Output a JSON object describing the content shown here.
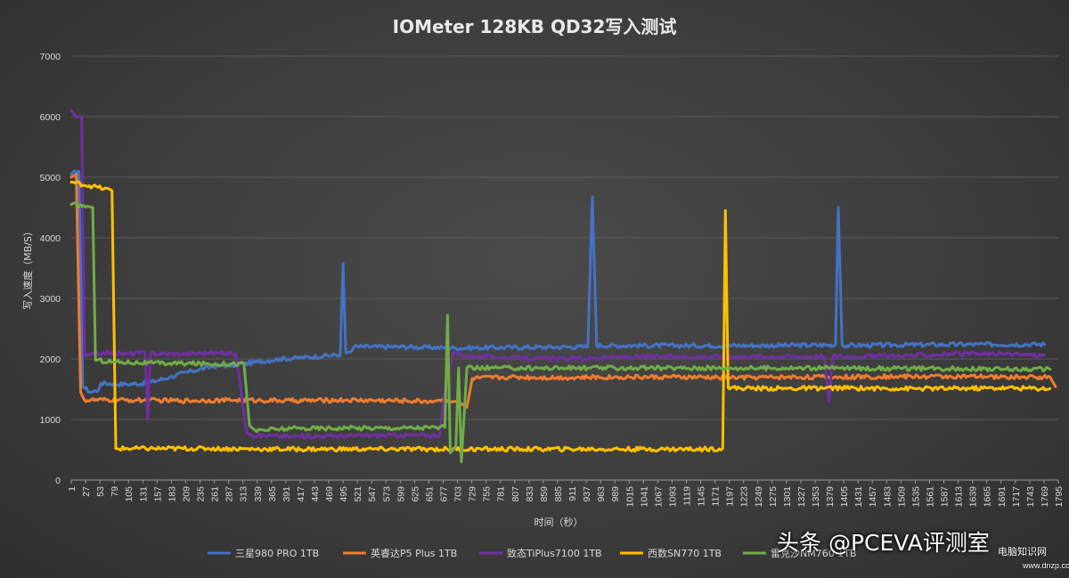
{
  "chart_data": {
    "type": "line",
    "title": "IOMeter 128KB QD32写入测试",
    "xlabel": "时间（秒）",
    "ylabel": "写入速度（MB/S）",
    "xlim": [
      1,
      1795
    ],
    "ylim": [
      0,
      7000
    ],
    "y_ticks": [
      0,
      1000,
      2000,
      3000,
      4000,
      5000,
      6000,
      7000
    ],
    "x_ticks": [
      1,
      27,
      53,
      79,
      105,
      131,
      157,
      183,
      209,
      235,
      261,
      287,
      313,
      339,
      365,
      391,
      417,
      443,
      469,
      495,
      521,
      547,
      573,
      599,
      625,
      651,
      677,
      703,
      729,
      755,
      781,
      807,
      833,
      859,
      885,
      911,
      937,
      963,
      989,
      1015,
      1041,
      1067,
      1093,
      1119,
      1145,
      1171,
      1197,
      1223,
      1249,
      1275,
      1301,
      1327,
      1353,
      1379,
      1405,
      1431,
      1457,
      1483,
      1509,
      1535,
      1561,
      1587,
      1613,
      1639,
      1665,
      1691,
      1717,
      1743,
      1769,
      1795
    ],
    "grid": true,
    "legend_position": "bottom",
    "series": [
      {
        "name": "三星980 PRO 1TB",
        "color": "#4472c4",
        "points": [
          [
            1,
            5050
          ],
          [
            15,
            5100
          ],
          [
            22,
            1550
          ],
          [
            35,
            1450
          ],
          [
            50,
            1480
          ],
          [
            55,
            1600
          ],
          [
            100,
            1580
          ],
          [
            140,
            1600
          ],
          [
            180,
            1700
          ],
          [
            220,
            1800
          ],
          [
            260,
            1880
          ],
          [
            300,
            1900
          ],
          [
            340,
            1950
          ],
          [
            380,
            2000
          ],
          [
            420,
            2020
          ],
          [
            460,
            2050
          ],
          [
            490,
            2070
          ],
          [
            495,
            3580
          ],
          [
            500,
            2100
          ],
          [
            510,
            2120
          ],
          [
            515,
            2200
          ],
          [
            600,
            2200
          ],
          [
            700,
            2180
          ],
          [
            800,
            2190
          ],
          [
            940,
            2200
          ],
          [
            948,
            4680
          ],
          [
            956,
            2220
          ],
          [
            1100,
            2220
          ],
          [
            1250,
            2220
          ],
          [
            1390,
            2230
          ],
          [
            1395,
            4500
          ],
          [
            1402,
            2220
          ],
          [
            1500,
            2230
          ],
          [
            1650,
            2240
          ],
          [
            1770,
            2240
          ]
        ]
      },
      {
        "name": "英睿达P5 Plus 1TB",
        "color": "#ed7d31",
        "points": [
          [
            1,
            5000
          ],
          [
            10,
            5050
          ],
          [
            18,
            1450
          ],
          [
            25,
            1320
          ],
          [
            100,
            1320
          ],
          [
            200,
            1310
          ],
          [
            300,
            1320
          ],
          [
            400,
            1310
          ],
          [
            500,
            1320
          ],
          [
            600,
            1310
          ],
          [
            660,
            1300
          ],
          [
            670,
            1320
          ],
          [
            700,
            1300
          ],
          [
            720,
            1200
          ],
          [
            730,
            1680
          ],
          [
            800,
            1700
          ],
          [
            900,
            1690
          ],
          [
            1000,
            1700
          ],
          [
            1100,
            1700
          ],
          [
            1200,
            1690
          ],
          [
            1300,
            1700
          ],
          [
            1400,
            1700
          ],
          [
            1500,
            1710
          ],
          [
            1600,
            1710
          ],
          [
            1700,
            1700
          ],
          [
            1780,
            1700
          ],
          [
            1790,
            1540
          ]
        ]
      },
      {
        "name": "致态TiPlus7100 1TB",
        "color": "#7030a0",
        "points": [
          [
            1,
            6100
          ],
          [
            10,
            6000
          ],
          [
            20,
            6000
          ],
          [
            25,
            2050
          ],
          [
            60,
            2100
          ],
          [
            100,
            2080
          ],
          [
            135,
            2100
          ],
          [
            140,
            1000
          ],
          [
            145,
            2090
          ],
          [
            200,
            2080
          ],
          [
            250,
            2100
          ],
          [
            300,
            2090
          ],
          [
            320,
            780
          ],
          [
            330,
            740
          ],
          [
            400,
            720
          ],
          [
            500,
            730
          ],
          [
            600,
            740
          ],
          [
            670,
            740
          ],
          [
            680,
            1450
          ],
          [
            695,
            2100
          ],
          [
            720,
            2050
          ],
          [
            800,
            2020
          ],
          [
            900,
            2000
          ],
          [
            1000,
            2030
          ],
          [
            1100,
            2040
          ],
          [
            1200,
            2040
          ],
          [
            1300,
            2040
          ],
          [
            1370,
            2040
          ],
          [
            1378,
            1300
          ],
          [
            1385,
            2040
          ],
          [
            1500,
            2050
          ],
          [
            1600,
            2080
          ],
          [
            1700,
            2080
          ],
          [
            1770,
            2060
          ]
        ]
      },
      {
        "name": "西数SN770 1TB",
        "color": "#ffc000",
        "points": [
          [
            1,
            4920
          ],
          [
            40,
            4850
          ],
          [
            75,
            4780
          ],
          [
            82,
            520
          ],
          [
            150,
            520
          ],
          [
            250,
            520
          ],
          [
            350,
            510
          ],
          [
            450,
            510
          ],
          [
            550,
            510
          ],
          [
            650,
            510
          ],
          [
            750,
            510
          ],
          [
            850,
            510
          ],
          [
            950,
            510
          ],
          [
            1050,
            510
          ],
          [
            1150,
            510
          ],
          [
            1185,
            520
          ],
          [
            1190,
            4450
          ],
          [
            1195,
            1520
          ],
          [
            1300,
            1510
          ],
          [
            1400,
            1520
          ],
          [
            1500,
            1510
          ],
          [
            1600,
            1510
          ],
          [
            1700,
            1520
          ],
          [
            1780,
            1510
          ]
        ]
      },
      {
        "name": "雷克沙NM760 1TB",
        "color": "#70ad47",
        "points": [
          [
            1,
            4550
          ],
          [
            30,
            4520
          ],
          [
            40,
            4500
          ],
          [
            45,
            1980
          ],
          [
            80,
            1950
          ],
          [
            150,
            1930
          ],
          [
            250,
            1920
          ],
          [
            315,
            1920
          ],
          [
            325,
            900
          ],
          [
            335,
            820
          ],
          [
            400,
            850
          ],
          [
            500,
            860
          ],
          [
            600,
            860
          ],
          [
            680,
            870
          ],
          [
            685,
            2720
          ],
          [
            690,
            450
          ],
          [
            700,
            550
          ],
          [
            705,
            1850
          ],
          [
            710,
            300
          ],
          [
            720,
            1850
          ],
          [
            800,
            1850
          ],
          [
            900,
            1850
          ],
          [
            1000,
            1850
          ],
          [
            1100,
            1850
          ],
          [
            1200,
            1850
          ],
          [
            1300,
            1850
          ],
          [
            1400,
            1850
          ],
          [
            1500,
            1840
          ],
          [
            1600,
            1840
          ],
          [
            1700,
            1830
          ],
          [
            1780,
            1830
          ]
        ]
      }
    ]
  },
  "watermark": {
    "main": "头条 @PCEVA评测室",
    "site_cn": "电脑知识网",
    "site_url": "www.dnzp.com"
  }
}
